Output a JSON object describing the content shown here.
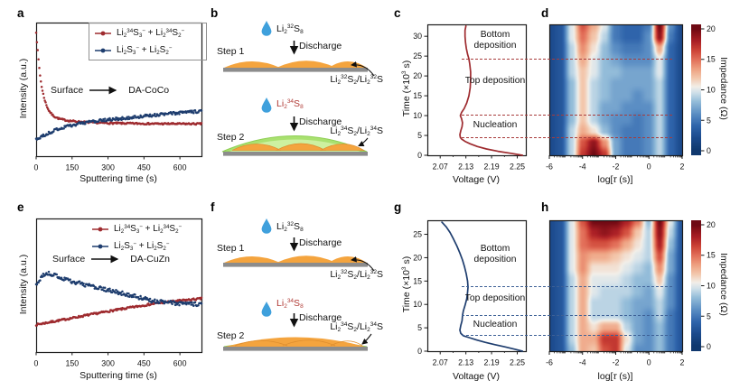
{
  "panels": {
    "a": "a",
    "b": "b",
    "c": "c",
    "d": "d",
    "e": "e",
    "f": "f",
    "g": "g",
    "h": "h"
  },
  "colors": {
    "red": "#9e2b2f",
    "blue": "#1e3d6e",
    "dash_red": "#a83b3b",
    "dash_blue": "#3d6096",
    "orange": "#f4a43e",
    "orange_edge": "#de8e2f",
    "green": "#a9e170",
    "green_edge": "#8fcf54",
    "green_light": "#cdf0a0",
    "gray": "#8c8c8c",
    "droplet": "#3fa0dc",
    "red_text": "#b03a35",
    "frame": "#1a1a1a"
  },
  "legend": {
    "red": "Li_2_^34^S_3_^−^ + Li_2_^34^S_2_^−^",
    "blue": "Li_2_S_3_^−^ + Li_2_S_2_^−^"
  },
  "annotations": {
    "surface": "Surface",
    "coco": "DA-CoCo",
    "cuzn": "DA-CuZn"
  },
  "regions": {
    "bottom": "Bottom deposition",
    "top": "Top deposition",
    "nucleation": "Nucleation"
  },
  "diagram": {
    "step1": "Step 1",
    "step2": "Step 2",
    "discharge": "Discharge",
    "reactant_32": "Li_2_^32^S_8_",
    "reactant_34": "Li_2_^34^S_8_",
    "product_32": "Li_2_^32^S_2_/Li_2_^32^S",
    "product_34": "Li_2_^34^S_2_/Li_2_^34^S"
  },
  "axis": {
    "intensity": "Intensity (a.u.)",
    "sputter": "Sputtering time (s)",
    "time": "Time (×10^3^ s)",
    "voltage": "Voltage (V)",
    "logtau": "log[~τ~ (s)]",
    "impedance": "Impedance (Ω)"
  },
  "colormap": [
    [
      0,
      "#10386e"
    ],
    [
      2,
      "#1c4a8c"
    ],
    [
      4,
      "#2f64ab"
    ],
    [
      6,
      "#5b8ec4"
    ],
    [
      8,
      "#93bcd9"
    ],
    [
      9.5,
      "#cfe0ea"
    ],
    [
      10.5,
      "#f2efe9"
    ],
    [
      12,
      "#f3c6ab"
    ],
    [
      13.5,
      "#ee9f7f"
    ],
    [
      15,
      "#e3705a"
    ],
    [
      16.5,
      "#cd4437"
    ],
    [
      18,
      "#ab2026"
    ],
    [
      19.5,
      "#821018"
    ],
    [
      20,
      "#6f0a14"
    ]
  ],
  "chart_data": [
    {
      "id": "a",
      "type": "scatter",
      "xlabel": "Sputtering time (s)",
      "ylabel": "Intensity (a.u.)",
      "xticks": [
        0,
        150,
        300,
        450,
        600
      ],
      "xrange": [
        0,
        690
      ],
      "yrange": [
        0,
        1
      ],
      "series": [
        {
          "name": "Li_2_^34^S_3_^−^ + Li_2_^34^S_2_^−^",
          "color": "red",
          "noise": 0.006,
          "trend": [
            [
              0,
              0.93
            ],
            [
              6,
              0.8
            ],
            [
              12,
              0.68
            ],
            [
              18,
              0.58
            ],
            [
              25,
              0.5
            ],
            [
              33,
              0.44
            ],
            [
              42,
              0.385
            ],
            [
              52,
              0.345
            ],
            [
              64,
              0.315
            ],
            [
              78,
              0.295
            ],
            [
              95,
              0.281
            ],
            [
              115,
              0.272
            ],
            [
              140,
              0.265
            ],
            [
              170,
              0.259
            ],
            [
              210,
              0.254
            ],
            [
              260,
              0.25
            ],
            [
              320,
              0.247
            ],
            [
              400,
              0.245
            ],
            [
              500,
              0.243
            ],
            [
              600,
              0.242
            ],
            [
              690,
              0.242
            ]
          ]
        },
        {
          "name": "Li_2_S_3_^−^ + Li_2_S_2_^−^",
          "color": "blue",
          "noise": 0.011,
          "trend": [
            [
              0,
              0.125
            ],
            [
              15,
              0.138
            ],
            [
              30,
              0.152
            ],
            [
              50,
              0.17
            ],
            [
              75,
              0.19
            ],
            [
              100,
              0.208
            ],
            [
              130,
              0.224
            ],
            [
              160,
              0.237
            ],
            [
              200,
              0.25
            ],
            [
              250,
              0.262
            ],
            [
              300,
              0.272
            ],
            [
              360,
              0.283
            ],
            [
              420,
              0.294
            ],
            [
              480,
              0.305
            ],
            [
              540,
              0.315
            ],
            [
              600,
              0.325
            ],
            [
              650,
              0.331
            ],
            [
              690,
              0.335
            ]
          ]
        }
      ]
    },
    {
      "id": "c",
      "type": "line",
      "xlabel": "Voltage (V)",
      "ylabel": "Time (×10^3^ s)",
      "xticks": [
        2.07,
        2.13,
        2.19,
        2.25
      ],
      "xminor": [
        2.1,
        2.16,
        2.22
      ],
      "yticks": [
        0,
        5,
        10,
        15,
        20,
        25,
        30
      ],
      "xrange": [
        2.04,
        2.27
      ],
      "yrange": [
        0,
        33
      ],
      "color": "red",
      "dash_color": "dash_red",
      "dashed_times": [
        4.3,
        10,
        24.3
      ],
      "regions": [
        "Bottom deposition",
        "Top deposition",
        "Nucleation"
      ],
      "curve": [
        [
          2.262,
          0
        ],
        [
          2.235,
          0.5
        ],
        [
          2.205,
          1.0
        ],
        [
          2.178,
          1.6
        ],
        [
          2.157,
          2.2
        ],
        [
          2.14,
          2.9
        ],
        [
          2.128,
          3.5
        ],
        [
          2.12,
          4.1
        ],
        [
          2.117,
          4.5
        ],
        [
          2.116,
          5.2
        ],
        [
          2.118,
          6.2
        ],
        [
          2.121,
          7.2
        ],
        [
          2.122,
          8.2
        ],
        [
          2.12,
          9.2
        ],
        [
          2.117,
          10.0
        ],
        [
          2.12,
          10.8
        ],
        [
          2.126,
          11.8
        ],
        [
          2.132,
          13.2
        ],
        [
          2.137,
          15.0
        ],
        [
          2.14,
          17.0
        ],
        [
          2.141,
          19.0
        ],
        [
          2.141,
          21.0
        ],
        [
          2.139,
          23.0
        ],
        [
          2.137,
          24.3
        ],
        [
          2.134,
          25.5
        ],
        [
          2.131,
          27.0
        ],
        [
          2.129,
          28.5
        ],
        [
          2.128,
          30.0
        ],
        [
          2.128,
          31.5
        ],
        [
          2.13,
          32.6
        ]
      ]
    },
    {
      "id": "d",
      "type": "heatmap",
      "xlabel": "log[~τ~ (s)]",
      "xticks": [
        -6,
        -4,
        -2,
        0,
        2
      ],
      "xrange": [
        -6,
        2
      ],
      "yrange": [
        0,
        33
      ],
      "dash_color": "dash_red",
      "dashed_times": [
        4.3,
        10,
        24.3
      ],
      "colorbar": {
        "label": "Impedance (Ω)",
        "ticks": [
          0,
          5,
          10,
          15,
          20
        ],
        "range": [
          0,
          20
        ]
      },
      "values": [
        [
          2,
          3,
          9,
          17,
          20,
          17,
          7,
          5,
          5,
          6,
          9,
          4,
          2
        ],
        [
          2,
          3,
          9,
          16,
          19,
          14,
          7,
          5,
          5,
          6,
          9,
          4,
          2
        ],
        [
          2,
          3,
          9,
          13,
          11,
          8,
          6,
          5,
          5,
          6,
          9,
          4,
          2
        ],
        [
          2,
          3,
          8,
          12,
          9,
          7,
          6,
          6,
          5,
          6,
          9,
          4,
          2
        ],
        [
          2,
          3,
          8,
          12,
          9,
          7,
          7,
          6,
          6,
          6,
          9,
          4,
          2
        ],
        [
          2,
          3,
          8,
          12,
          9,
          8,
          7,
          7,
          6,
          7,
          9,
          4,
          2
        ],
        [
          2,
          3,
          8,
          12,
          9,
          8,
          7,
          7,
          7,
          7,
          9,
          4,
          2
        ],
        [
          2,
          3,
          9,
          12,
          10,
          8,
          8,
          7,
          7,
          7,
          10,
          4,
          2
        ],
        [
          2,
          3,
          9,
          13,
          10,
          8,
          7,
          6,
          6,
          6,
          10,
          4,
          2
        ],
        [
          2,
          3,
          9,
          14,
          11,
          8,
          6,
          5,
          5,
          6,
          13,
          4,
          2
        ],
        [
          2,
          3,
          10,
          15,
          12,
          9,
          5,
          4,
          4,
          6,
          19,
          5,
          2
        ],
        [
          2,
          3,
          10,
          16,
          13,
          10,
          5,
          4,
          4,
          5,
          20,
          6,
          2
        ]
      ]
    },
    {
      "id": "e",
      "type": "scatter",
      "xlabel": "Sputtering time (s)",
      "ylabel": "Intensity (a.u.)",
      "xticks": [
        0,
        150,
        300,
        450,
        600
      ],
      "xrange": [
        0,
        690
      ],
      "yrange": [
        0,
        1
      ],
      "series": [
        {
          "name": "Li_2_^34^S_3_^−^ + Li_2_^34^S_2_^−^",
          "color": "red",
          "noise": 0.007,
          "trend": [
            [
              0,
              0.205
            ],
            [
              100,
              0.238
            ],
            [
              200,
              0.272
            ],
            [
              300,
              0.305
            ],
            [
              400,
              0.335
            ],
            [
              500,
              0.365
            ],
            [
              600,
              0.385
            ],
            [
              690,
              0.4
            ]
          ]
        },
        {
          "name": "Li_2_S_3_^−^ + Li_2_S_2_^−^",
          "color": "blue",
          "noise": 0.015,
          "trend": [
            [
              0,
              0.5
            ],
            [
              20,
              0.555
            ],
            [
              40,
              0.59
            ],
            [
              60,
              0.585
            ],
            [
              90,
              0.565
            ],
            [
              130,
              0.54
            ],
            [
              180,
              0.515
            ],
            [
              240,
              0.488
            ],
            [
              300,
              0.463
            ],
            [
              360,
              0.44
            ],
            [
              420,
              0.415
            ],
            [
              480,
              0.385
            ],
            [
              540,
              0.372
            ],
            [
              600,
              0.364
            ],
            [
              690,
              0.355
            ]
          ]
        }
      ]
    },
    {
      "id": "g",
      "type": "line",
      "xlabel": "Voltage (V)",
      "ylabel": "Time (×10^3^ s)",
      "xticks": [
        2.07,
        2.13,
        2.19,
        2.25
      ],
      "xminor": [
        2.1,
        2.16,
        2.22
      ],
      "yticks": [
        0,
        5,
        10,
        15,
        20,
        25
      ],
      "xrange": [
        2.04,
        2.27
      ],
      "yrange": [
        0,
        28
      ],
      "color": "blue",
      "dash_color": "dash_blue",
      "dashed_times": [
        3.3,
        7.6,
        13.7
      ],
      "regions": [
        "Bottom deposition",
        "Top deposition",
        "Nucleation"
      ],
      "curve": [
        [
          2.262,
          0
        ],
        [
          2.245,
          0.4
        ],
        [
          2.222,
          0.9
        ],
        [
          2.198,
          1.4
        ],
        [
          2.175,
          1.9
        ],
        [
          2.155,
          2.4
        ],
        [
          2.138,
          2.9
        ],
        [
          2.124,
          3.3
        ],
        [
          2.118,
          3.8
        ],
        [
          2.116,
          4.5
        ],
        [
          2.118,
          5.5
        ],
        [
          2.121,
          6.5
        ],
        [
          2.122,
          7.6
        ],
        [
          2.124,
          8.6
        ],
        [
          2.128,
          9.8
        ],
        [
          2.132,
          11.2
        ],
        [
          2.134,
          12.6
        ],
        [
          2.135,
          13.7
        ],
        [
          2.134,
          15.0
        ],
        [
          2.131,
          16.5
        ],
        [
          2.127,
          18.0
        ],
        [
          2.122,
          19.5
        ],
        [
          2.116,
          21.0
        ],
        [
          2.109,
          22.5
        ],
        [
          2.101,
          24.0
        ],
        [
          2.093,
          25.4
        ],
        [
          2.084,
          26.6
        ],
        [
          2.074,
          27.6
        ]
      ]
    },
    {
      "id": "h",
      "type": "heatmap",
      "xlabel": "log[~τ~ (s)]",
      "xticks": [
        -6,
        -4,
        -2,
        0,
        2
      ],
      "xrange": [
        -6,
        2
      ],
      "yrange": [
        0,
        28
      ],
      "dash_color": "dash_blue",
      "dashed_times": [
        3.3,
        7.6,
        13.7
      ],
      "colorbar": {
        "label": "Impedance (Ω)",
        "ticks": [
          0,
          5,
          10,
          15,
          20
        ],
        "range": [
          0,
          20
        ]
      },
      "values": [
        [
          2,
          3,
          8,
          13,
          12,
          16,
          17,
          10,
          6,
          6,
          8,
          5,
          3
        ],
        [
          2,
          3,
          9,
          13,
          13,
          17,
          17,
          11,
          7,
          6,
          8,
          5,
          3
        ],
        [
          2,
          3,
          9,
          13,
          11,
          13,
          13,
          9,
          7,
          6,
          8,
          5,
          3
        ],
        [
          2,
          3,
          9,
          13,
          9,
          9,
          9,
          8,
          7,
          6,
          9,
          5,
          3
        ],
        [
          2,
          3,
          9,
          13,
          9,
          9,
          9,
          8,
          7,
          7,
          9,
          6,
          3
        ],
        [
          2,
          3,
          9,
          13,
          10,
          9,
          9,
          9,
          8,
          7,
          10,
          6,
          3
        ],
        [
          2,
          3,
          9,
          13,
          10,
          10,
          10,
          9,
          8,
          8,
          12,
          6,
          3
        ],
        [
          2,
          3,
          10,
          14,
          11,
          11,
          11,
          10,
          9,
          8,
          14,
          7,
          3
        ],
        [
          2,
          3,
          10,
          14,
          13,
          13,
          12,
          11,
          10,
          9,
          16,
          7,
          3
        ],
        [
          2,
          3,
          10,
          15,
          16,
          16,
          15,
          13,
          11,
          9,
          18,
          8,
          3
        ],
        [
          2,
          3,
          10,
          15,
          18,
          19,
          18,
          16,
          12,
          9,
          19,
          9,
          3
        ],
        [
          2,
          3,
          10,
          16,
          20,
          20,
          20,
          18,
          15,
          8,
          20,
          10,
          3
        ]
      ]
    }
  ]
}
